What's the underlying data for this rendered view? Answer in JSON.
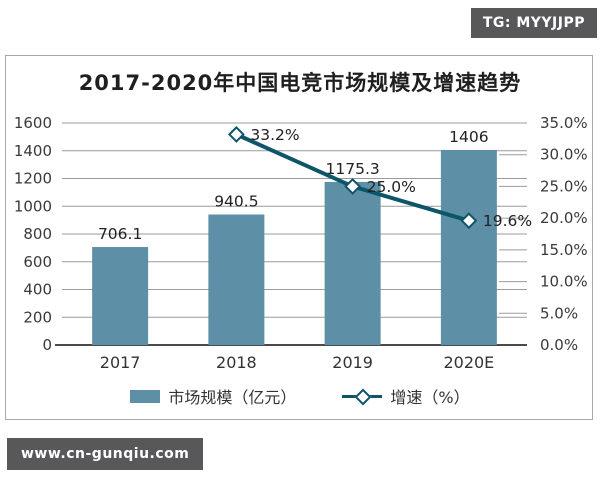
{
  "badge": {
    "text": "TG: MYYJJPP"
  },
  "watermark": {
    "text": "www.cn-gunqiu.com"
  },
  "colors": {
    "bar": "#5d8fa7",
    "line": "#0d5569",
    "grid": "#9b9b9b",
    "axis": "#4a4a4a",
    "tick_text": "#3a3a3a",
    "label_text": "#222222",
    "badge_bg": "#58585a",
    "frame_border": "#a8a8a8"
  },
  "chart_data": {
    "type": "bar+line",
    "title": "2017-2020年中国电竞市场规模及增速趋势",
    "categories": [
      "2017",
      "2018",
      "2019",
      "2020E"
    ],
    "series": [
      {
        "name": "市场规模（亿元）",
        "type": "bar",
        "axis": "left",
        "values": [
          706.1,
          940.5,
          1175.3,
          1406
        ],
        "labels": [
          "706.1",
          "940.5",
          "1175.3",
          "1406"
        ],
        "color": "#5d8fa7"
      },
      {
        "name": "增速（%）",
        "type": "line",
        "axis": "right",
        "values": [
          null,
          33.2,
          25.0,
          19.6
        ],
        "labels": [
          null,
          "33.2%",
          "25.0%",
          "19.6%"
        ],
        "color": "#0d5569",
        "marker": "diamond"
      }
    ],
    "left_axis": {
      "min": 0,
      "max": 1600,
      "step": 200,
      "tick_labels": [
        "0",
        "200",
        "400",
        "600",
        "800",
        "1000",
        "1200",
        "1400",
        "1600"
      ]
    },
    "right_axis": {
      "min": 0,
      "max": 35,
      "step": 5,
      "tick_labels": [
        "0.0%",
        "5.0%",
        "10.0%",
        "15.0%",
        "20.0%",
        "25.0%",
        "30.0%",
        "35.0%"
      ]
    },
    "grid": true,
    "legend_position": "bottom",
    "xlabel": "",
    "ylabel": ""
  }
}
